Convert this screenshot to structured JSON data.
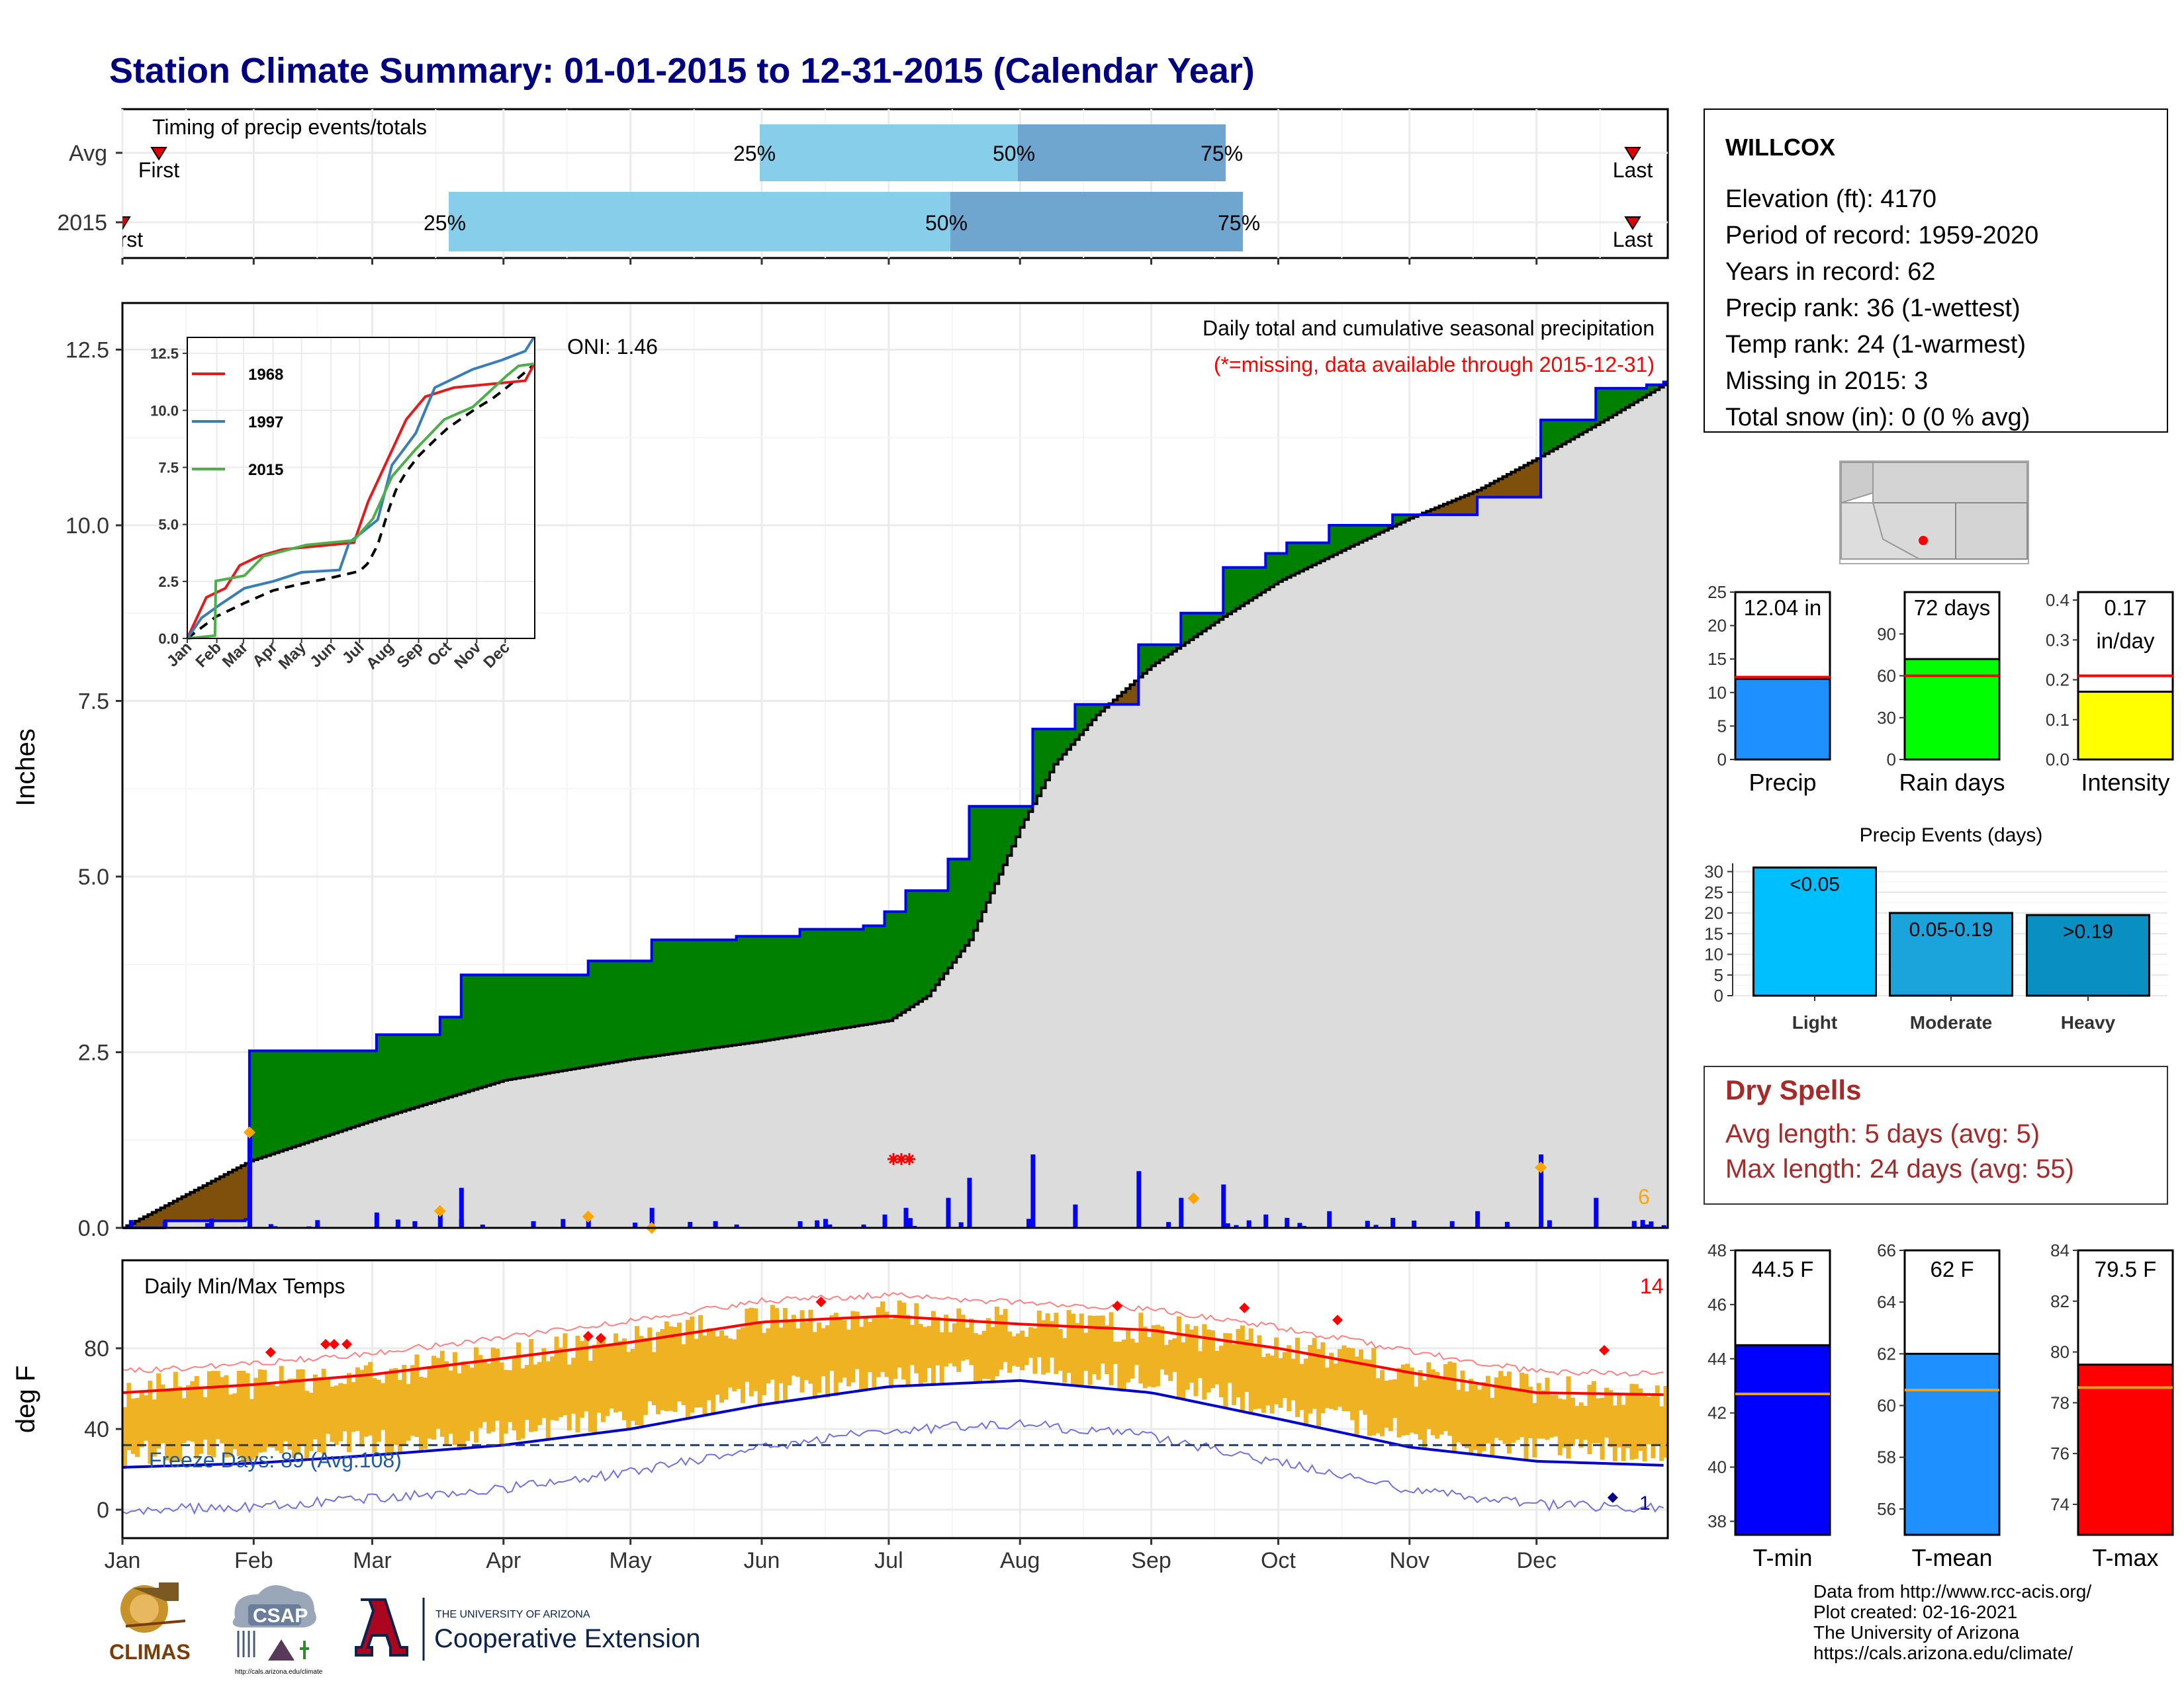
{
  "title": "Station Climate Summary: 01-01-2015 to 12-31-2015 (Calendar Year)",
  "timing": {
    "label": "Timing of precip events/totals",
    "rows": [
      {
        "name": "Avg",
        "first_label": "First",
        "last_label": "Last",
        "q25": "25%",
        "q50": "50%",
        "q75": "75%"
      },
      {
        "name": "2015",
        "first_label": "First",
        "last_label": "Last",
        "q25": "25%",
        "q50": "50%",
        "q75": "75%"
      }
    ],
    "avg_quartile_days": [
      165,
      195,
      240
    ],
    "y2015_quartile_days": [
      75,
      158,
      250
    ],
    "avg_first_day": 7,
    "avg_last_day": 361,
    "y2015_first_day": 1,
    "y2015_last_day": 361
  },
  "station": {
    "name": "WILLCOX",
    "lines": [
      "Elevation (ft): 4170",
      "Period of record: 1959-2020",
      "Years in record: 62",
      "Precip rank: 36 (1-wettest)",
      "Temp rank: 24 (1-warmest)",
      "Missing in 2015: 3",
      "Total snow (in): 0 (0 % avg)"
    ]
  },
  "precip_panel": {
    "ylabel": "Inches",
    "title_line1": "Daily total and cumulative seasonal precipitation",
    "title_line2": "(*=missing, data available through 2015-12-31)",
    "oni": "ONI: 1.46",
    "corner_count": "6",
    "yticks": [
      "0.0",
      "2.5",
      "5.0",
      "7.5",
      "10.0",
      "12.5"
    ]
  },
  "inset": {
    "yticks": [
      "0.0",
      "2.5",
      "5.0",
      "7.5",
      "10.0",
      "12.5"
    ],
    "xticks": [
      "Jan",
      "Feb",
      "Mar",
      "Apr",
      "May",
      "Jun",
      "Jul",
      "Aug",
      "Sep",
      "Oct",
      "Nov",
      "Dec"
    ],
    "legend": [
      "1968",
      "1997",
      "2015"
    ],
    "colors": {
      "1968": "#e41a1c",
      "1997": "#377eb8",
      "2015": "#4daf4a"
    }
  },
  "temp_panel": {
    "ylabel": "deg F",
    "title": "Daily Min/Max Temps",
    "record_high_count": "14",
    "record_low_count": "1",
    "freeze": "Freeze Days: 89 (Avg:108)",
    "yticks": [
      "0",
      "40",
      "80"
    ]
  },
  "months": [
    "Jan",
    "Feb",
    "Mar",
    "Apr",
    "May",
    "Jun",
    "Jul",
    "Aug",
    "Sep",
    "Oct",
    "Nov",
    "Dec"
  ],
  "precip_summary": [
    {
      "label": "Precip",
      "value_label": "12.04 in",
      "value": 12.04,
      "avg": 12.3,
      "ymax": 25,
      "yticks": [
        "0",
        "5",
        "10",
        "15",
        "20",
        "25"
      ],
      "color": "#1e90ff"
    },
    {
      "label": "Rain days",
      "value_label": "72 days",
      "value": 72,
      "avg": 60,
      "ymax": 120,
      "yticks": [
        "0",
        "30",
        "60",
        "90"
      ],
      "color": "#00ff00"
    },
    {
      "label": "Intensity",
      "value_label": "0.17\nin/day",
      "value": 0.17,
      "avg": 0.21,
      "ymax": 0.42,
      "yticks": [
        "0.0",
        "0.1",
        "0.2",
        "0.3",
        "0.4"
      ],
      "color": "#ffff00"
    }
  ],
  "events": {
    "title": "Precip Events (days)",
    "yticks": [
      "0",
      "5",
      "10",
      "15",
      "20",
      "25",
      "30"
    ],
    "bars": [
      {
        "category": "Light",
        "label": "<0.05",
        "value": 31,
        "color": "#00bfff"
      },
      {
        "category": "Moderate",
        "label": "0.05-0.19",
        "value": 20,
        "color": "#1ba3db"
      },
      {
        "category": "Heavy",
        "label": ">0.19",
        "value": 19.5,
        "color": "#0a8fc2"
      }
    ]
  },
  "dry_spells": {
    "title": "Dry Spells",
    "lines": [
      "Avg length: 5 days (avg: 5)",
      "Max length: 24 days (avg: 55)"
    ]
  },
  "temp_summary": [
    {
      "label": "T-min",
      "value_label": "44.5 F",
      "value": 44.5,
      "avg": 42.7,
      "ymin": 37.5,
      "ymax": 48,
      "yticks": [
        "38",
        "40",
        "42",
        "44",
        "46",
        "48"
      ],
      "color": "#0000ff"
    },
    {
      "label": "T-mean",
      "value_label": "62 F",
      "value": 62,
      "avg": 60.6,
      "ymin": 55,
      "ymax": 66,
      "yticks": [
        "56",
        "58",
        "60",
        "62",
        "64",
        "66"
      ],
      "color": "#1e90ff"
    },
    {
      "label": "T-max",
      "value_label": "79.5 F",
      "value": 79.5,
      "avg": 78.6,
      "ymin": 72.8,
      "ymax": 84,
      "yticks": [
        "74",
        "76",
        "78",
        "80",
        "82",
        "84"
      ],
      "color": "#ff0000"
    }
  ],
  "credits": [
    "Data from http://www.rcc-acis.org/",
    "Plot created: 02-16-2021",
    "The University of Arizona",
    "https://cals.arizona.edu/climate/"
  ],
  "logos": {
    "climas": "CLIMAS",
    "csap": "CSAP",
    "csap_url": "http://cals.arizona.edu/climate",
    "ua_line1": "THE UNIVERSITY OF ARIZONA",
    "ua_line2": "Cooperative Extension"
  },
  "chart_data": [
    {
      "type": "area",
      "title": "Daily total and cumulative seasonal precipitation",
      "ylabel": "Inches",
      "xlim": [
        "Jan",
        "Dec"
      ],
      "ylim": [
        0,
        13
      ],
      "series": [
        {
          "name": "2015 cumulative",
          "x_day": [
            0,
            10,
            29,
            30,
            60,
            75,
            80,
            95,
            110,
            125,
            145,
            160,
            175,
            180,
            185,
            195,
            200,
            210,
            215,
            225,
            240,
            250,
            260,
            270,
            275,
            285,
            300,
            320,
            335,
            340,
            348,
            360,
            364
          ],
          "y": [
            0.0,
            0.1,
            0.12,
            2.52,
            2.75,
            3.0,
            3.6,
            3.6,
            3.8,
            4.1,
            4.15,
            4.25,
            4.3,
            4.5,
            4.8,
            5.25,
            6.0,
            6.0,
            7.1,
            7.45,
            8.3,
            8.75,
            9.4,
            9.6,
            9.75,
            10.0,
            10.15,
            10.4,
            11.5,
            11.5,
            11.95,
            12.0,
            12.04
          ]
        },
        {
          "name": "Avg cumulative",
          "x_day": [
            0,
            30,
            60,
            90,
            120,
            150,
            181,
            190,
            200,
            212,
            220,
            230,
            243,
            260,
            273,
            290,
            304,
            320,
            334,
            350,
            364
          ],
          "y": [
            0.0,
            0.95,
            1.55,
            2.1,
            2.4,
            2.65,
            2.95,
            3.3,
            4.1,
            5.7,
            6.6,
            7.3,
            8.0,
            8.7,
            9.2,
            9.7,
            10.1,
            10.5,
            10.95,
            11.5,
            12.0
          ]
        }
      ]
    },
    {
      "type": "line",
      "title": "Daily Min/Max Temps",
      "ylabel": "deg F",
      "ylim": [
        -8,
        102
      ],
      "series": [
        {
          "name": "avg max",
          "x_day": [
            0,
            31,
            59,
            90,
            120,
            151,
            181,
            212,
            243,
            273,
            304,
            334,
            364
          ],
          "y": [
            58,
            62,
            67,
            75,
            83,
            93,
            96,
            92,
            89,
            80,
            68,
            58,
            57
          ]
        },
        {
          "name": "avg min",
          "x_day": [
            0,
            31,
            59,
            90,
            120,
            151,
            181,
            212,
            243,
            273,
            304,
            334,
            364
          ],
          "y": [
            21,
            23,
            27,
            32,
            40,
            52,
            61,
            64,
            58,
            45,
            31,
            24,
            22
          ]
        },
        {
          "name": "freeze line",
          "x_day": [
            0,
            364
          ],
          "y": [
            32,
            32
          ]
        }
      ]
    }
  ]
}
